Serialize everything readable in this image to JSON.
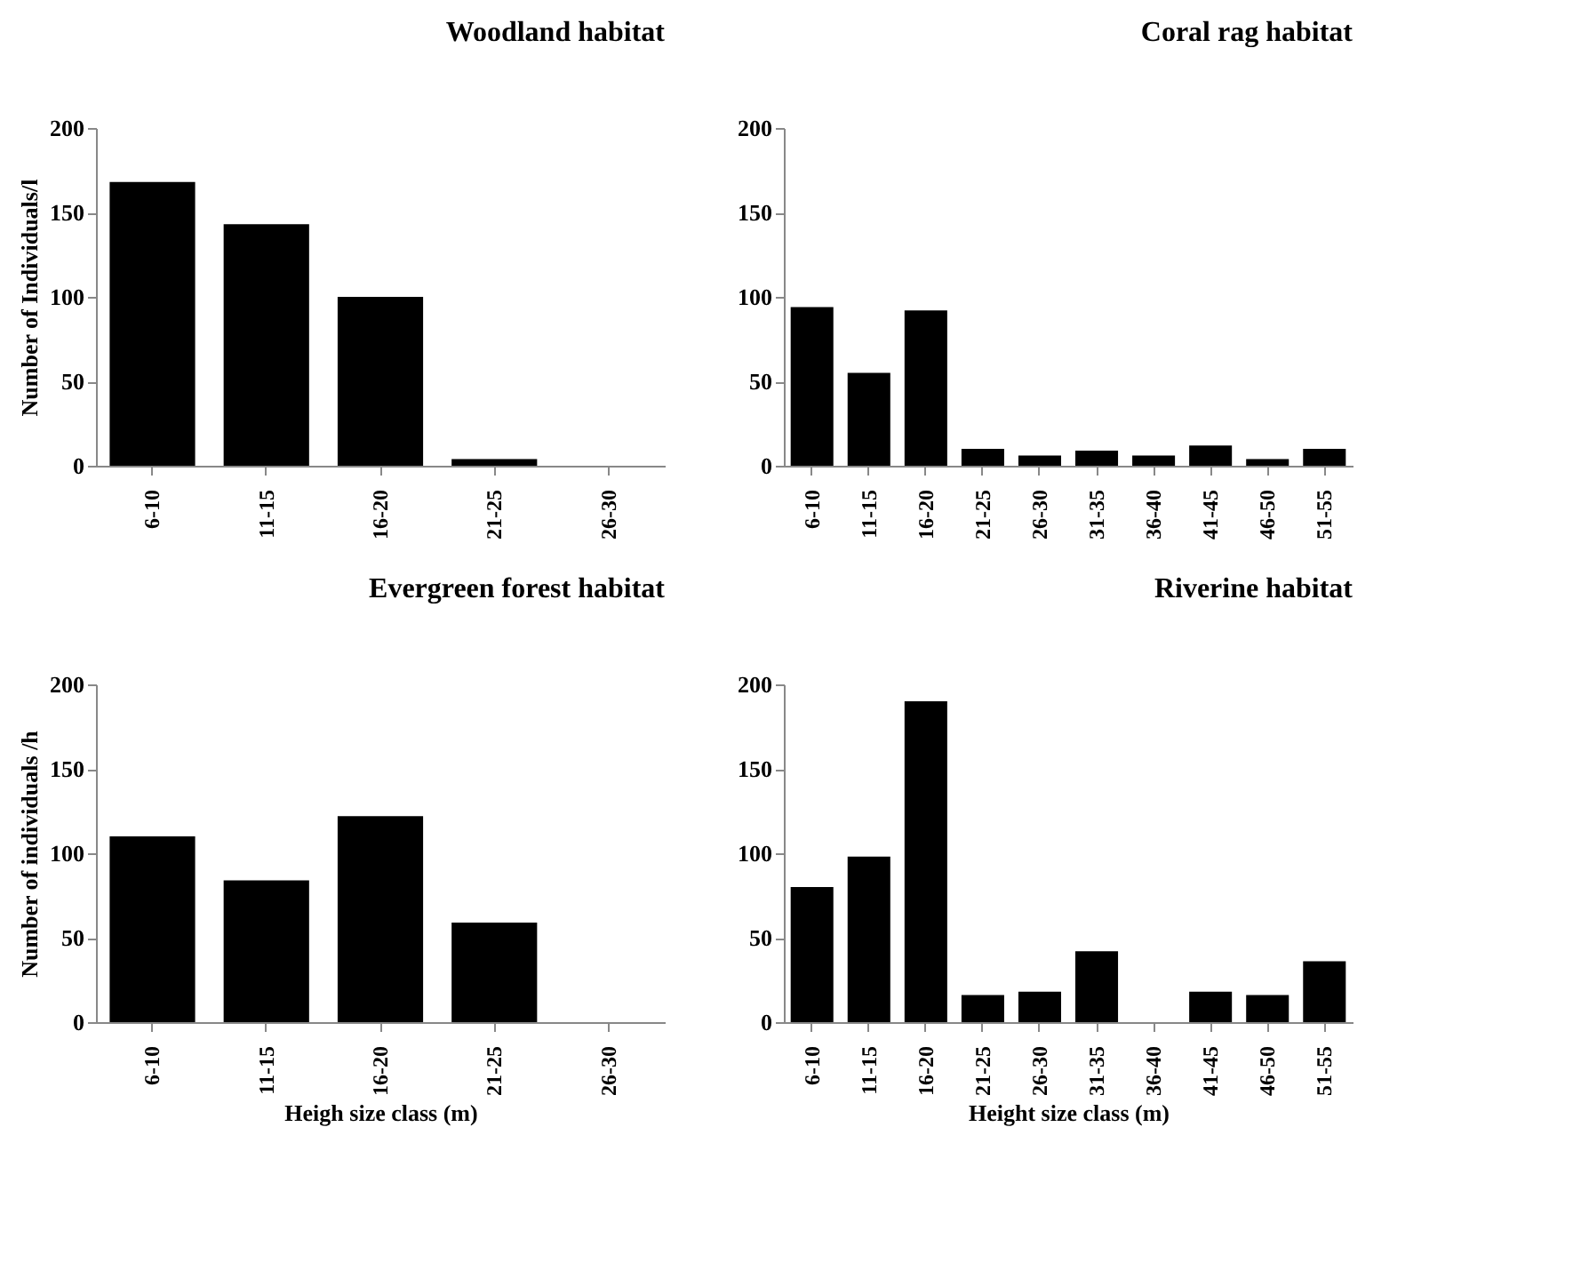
{
  "chart_data": [
    {
      "type": "bar",
      "title": "Woodland habitat",
      "ylabel": "Number of Individuals/l",
      "categories": [
        "6-10",
        "11-15",
        "16-20",
        "21-25",
        "26-30"
      ],
      "values": [
        168,
        143,
        100,
        4,
        0
      ],
      "color": "#000000",
      "ylim": [
        0,
        200
      ],
      "yticks": [
        0,
        50,
        100,
        150,
        200
      ],
      "grid": false
    },
    {
      "type": "bar",
      "title": "Coral rag habitat",
      "categories": [
        "6-10",
        "11-15",
        "16-20",
        "21-25",
        "26-30",
        "31-35",
        "36-40",
        "41-45",
        "46-50",
        "51-55"
      ],
      "values": [
        94,
        55,
        92,
        10,
        6,
        9,
        6,
        12,
        4,
        10
      ],
      "color": "#000000",
      "ylim": [
        0,
        200
      ],
      "yticks": [
        0,
        50,
        100,
        150,
        200
      ],
      "grid": false
    },
    {
      "type": "bar",
      "title": "Evergreen forest habitat",
      "ylabel": "Number of individuals /h",
      "xlabel": "Heigh size class (m)",
      "categories": [
        "6-10",
        "11-15",
        "16-20",
        "21-25",
        "26-30"
      ],
      "values": [
        110,
        84,
        122,
        59,
        0
      ],
      "color": "#000000",
      "ylim": [
        0,
        200
      ],
      "yticks": [
        0,
        50,
        100,
        150,
        200
      ],
      "grid": false
    },
    {
      "type": "bar",
      "title": "Riverine habitat",
      "xlabel": "Height size class (m)",
      "categories": [
        "6-10",
        "11-15",
        "16-20",
        "21-25",
        "26-30",
        "31-35",
        "36-40",
        "41-45",
        "46-50",
        "51-55"
      ],
      "values": [
        80,
        98,
        190,
        16,
        18,
        42,
        0,
        18,
        16,
        36
      ],
      "color": "#000000",
      "ylim": [
        0,
        200
      ],
      "yticks": [
        0,
        50,
        100,
        150,
        200
      ],
      "grid": false
    }
  ]
}
